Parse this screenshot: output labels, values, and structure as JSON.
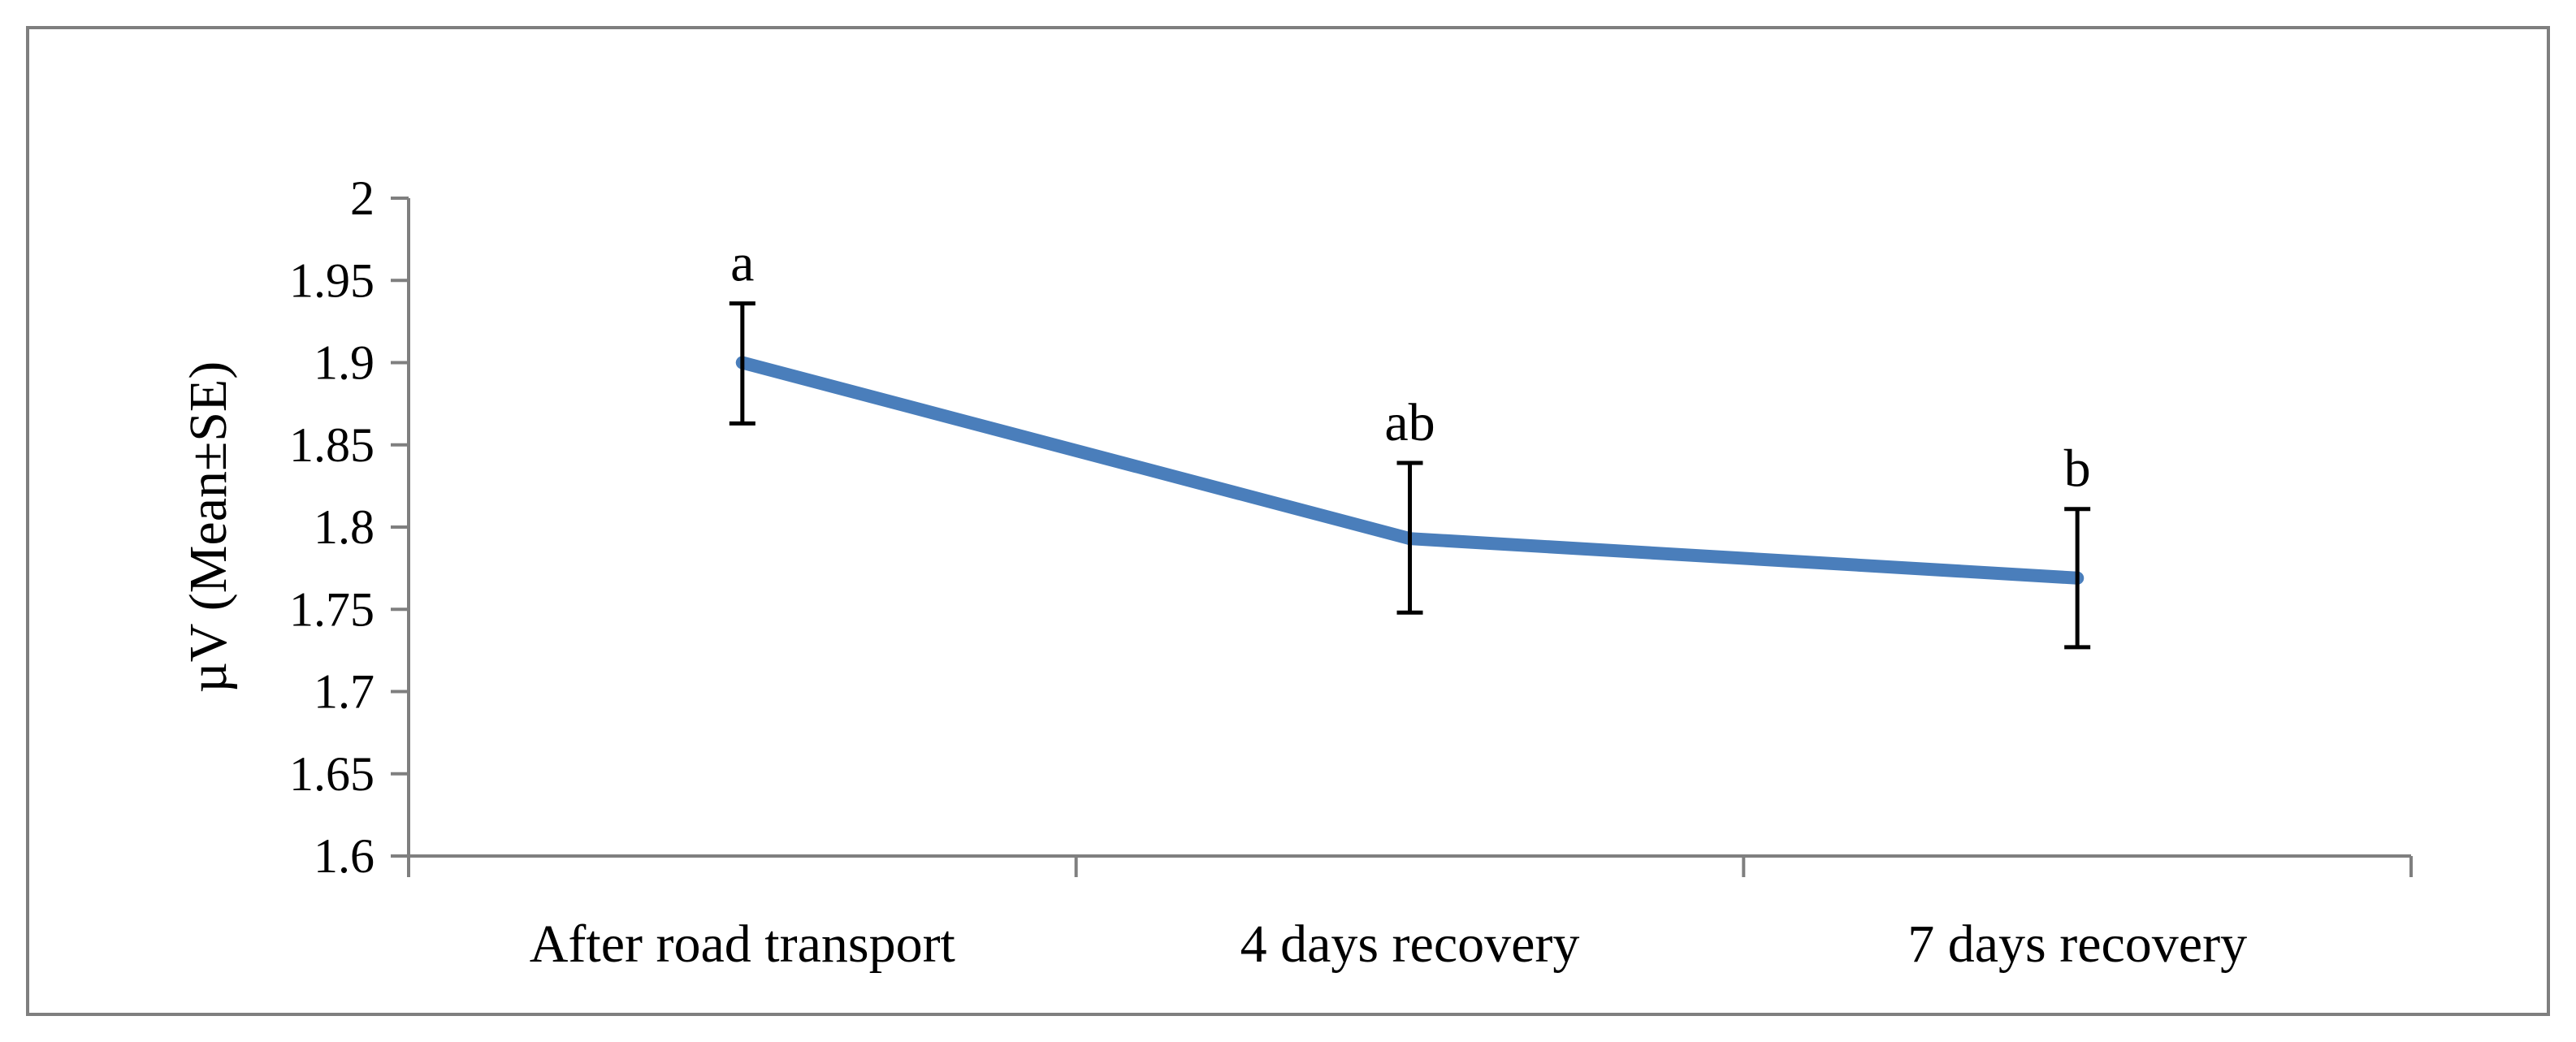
{
  "chart_data": {
    "type": "line",
    "title": "",
    "xlabel": "",
    "ylabel": "µV (Mean±SE)",
    "ylim": [
      1.6,
      2.0
    ],
    "yticks": [
      1.6,
      1.65,
      1.7,
      1.75,
      1.8,
      1.85,
      1.9,
      1.95,
      2.0
    ],
    "ytick_labels": [
      "1.6",
      "1.65",
      "1.7",
      "1.75",
      "1.8",
      "1.85",
      "1.9",
      "1.95",
      "2"
    ],
    "categories": [
      "After road transport",
      "4 days recovery",
      "7 days recovery"
    ],
    "series": [
      {
        "name": "µV",
        "color": "#4a7ebb",
        "values": [
          1.9,
          1.793,
          1.769
        ],
        "error_low": [
          1.863,
          1.748,
          1.727
        ],
        "error_high": [
          1.936,
          1.839,
          1.811
        ],
        "significance": [
          "a",
          "ab",
          "b"
        ]
      }
    ],
    "grid": false,
    "legend": "none"
  },
  "colors": {
    "line": "#4a7ebb",
    "axis": "#7f7f7f",
    "frame": "#7f7f7f",
    "error_bar": "#000000"
  }
}
